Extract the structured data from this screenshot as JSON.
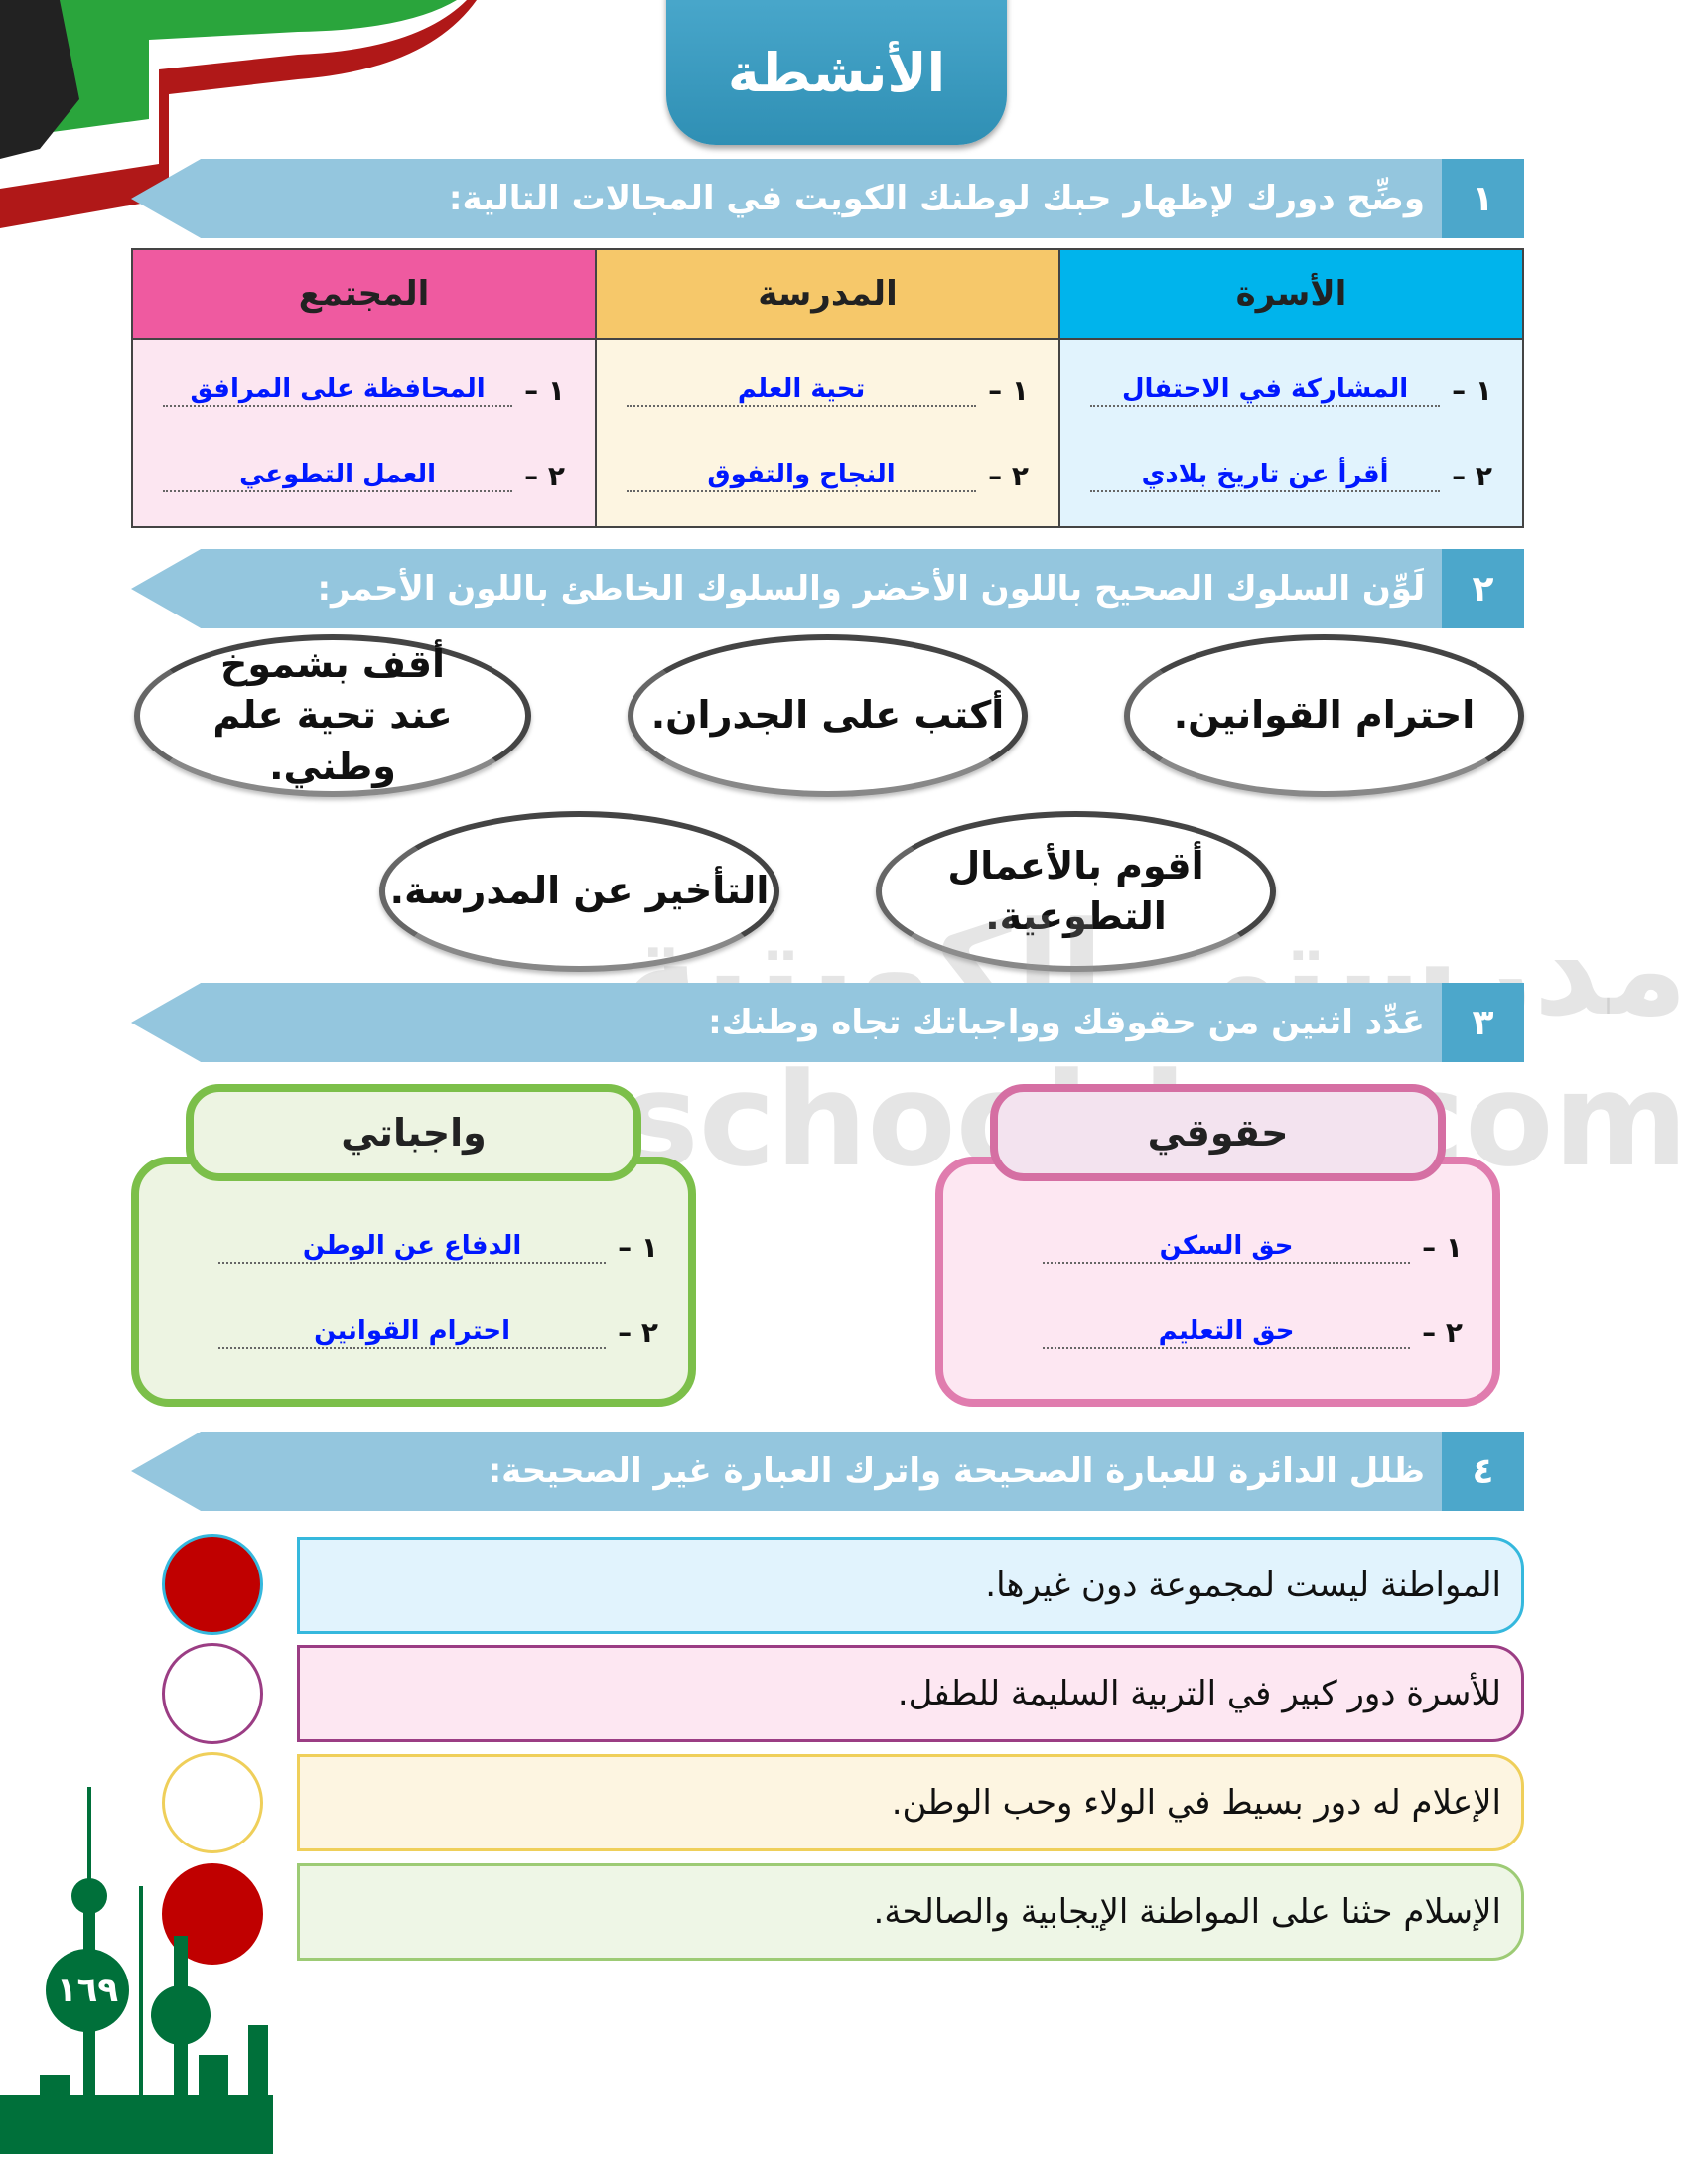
{
  "page": {
    "title": "الأنشطة",
    "page_number": "١٦٩",
    "watermark": "مدرستي الكويتية school-kw.com"
  },
  "colors": {
    "banner": "#94c6de",
    "banner_num": "#4ca7cb",
    "answer": "#0018ff",
    "shaded": "#c00000",
    "family": "#00b4ec",
    "school": "#f6c86a",
    "community": "#ef5aa0"
  },
  "q1": {
    "num": "١",
    "text": "وضِّح دورك لإظهار حبك لوطنك الكويت في المجالات التالية:",
    "columns": [
      {
        "header": "الأسرة",
        "items": [
          {
            "n": "١ –",
            "v": "المشاركة في الاحتفال"
          },
          {
            "n": "٢ –",
            "v": "أقرأ عن تاريخ بلادي"
          }
        ]
      },
      {
        "header": "المدرسة",
        "items": [
          {
            "n": "١ –",
            "v": "تحية العلم"
          },
          {
            "n": "٢ –",
            "v": "النجاح والتفوق"
          }
        ]
      },
      {
        "header": "المجتمع",
        "items": [
          {
            "n": "١ –",
            "v": "المحافظة على المرافق"
          },
          {
            "n": "٢ –",
            "v": "العمل التطوعي"
          }
        ]
      }
    ]
  },
  "q2": {
    "num": "٢",
    "text": "لَوِّن السلوك الصحيح باللون الأخضر والسلوك الخاطئ باللون الأحمر:",
    "ovals": [
      "احترام القوانين.",
      "أكتب على الجدران.",
      "أقف بشموخ عند تحية علم وطني.",
      "أقوم بالأعمال التطوعية.",
      "التأخير عن المدرسة."
    ]
  },
  "q3": {
    "num": "٣",
    "text": "عَدِّد اثنين من حقوقك وواجباتك تجاه وطنك:",
    "rights": {
      "title": "حقوقي",
      "items": [
        {
          "n": "١ –",
          "v": "حق السكن"
        },
        {
          "n": "٢ –",
          "v": "حق التعليم"
        }
      ]
    },
    "duties": {
      "title": "واجباتي",
      "items": [
        {
          "n": "١ –",
          "v": "الدفاع عن الوطن"
        },
        {
          "n": "٢ –",
          "v": "احترام القوانين"
        }
      ]
    }
  },
  "q4": {
    "num": "٤",
    "text": "ظلل الدائرة للعبارة الصحيحة واترك العبارة غير الصحيحة:",
    "statements": [
      {
        "text": "المواطنة ليست لمجموعة دون غيرها.",
        "shaded": true
      },
      {
        "text": "للأسرة دور كبير في التربية السليمة للطفل.",
        "shaded": false
      },
      {
        "text": "الإعلام له دور بسيط  في الولاء وحب الوطن.",
        "shaded": false
      },
      {
        "text": "الإسلام حثنا على المواطنة الإيجابية والصالحة.",
        "shaded": true
      }
    ]
  }
}
